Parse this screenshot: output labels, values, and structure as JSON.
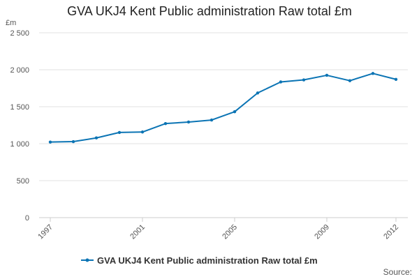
{
  "chart_data": {
    "type": "line",
    "title": "GVA UKJ4 Kent Public administration Raw total £m",
    "ylabel": "£m",
    "xlabel": "",
    "ylim": [
      0,
      2500
    ],
    "yticks": [
      0,
      500,
      1000,
      1500,
      2000,
      2500
    ],
    "ytick_labels": [
      "0",
      "500",
      "1 000",
      "1 500",
      "2 000",
      "2 500"
    ],
    "xticks": [
      1997,
      2001,
      2005,
      2009,
      2012
    ],
    "xtick_labels": [
      "1997",
      "2001",
      "2005",
      "2009",
      "2012"
    ],
    "x": [
      1997,
      1998,
      1999,
      2000,
      2001,
      2002,
      2003,
      2004,
      2005,
      2006,
      2007,
      2008,
      2009,
      2010,
      2011,
      2012
    ],
    "series": [
      {
        "name": "GVA UKJ4 Kent Public administration Raw total £m",
        "color": "#0b74b4",
        "values": [
          1022,
          1028,
          1078,
          1152,
          1158,
          1272,
          1293,
          1320,
          1432,
          1686,
          1835,
          1863,
          1925,
          1852,
          1950,
          1870
        ]
      }
    ],
    "grid": true,
    "legend_position": "bottom-center",
    "source_label": "Source:"
  }
}
